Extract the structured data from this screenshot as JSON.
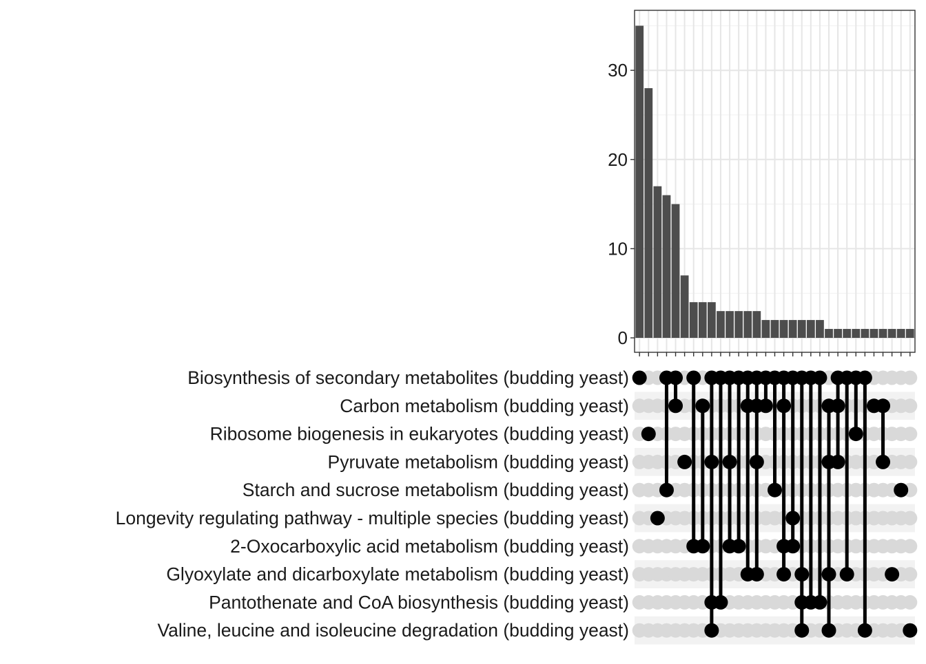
{
  "chart_data": {
    "type": "upset",
    "ylim": [
      0,
      36
    ],
    "yticks": [
      0,
      10,
      20,
      30
    ],
    "sets": [
      "Biosynthesis of secondary metabolites (budding yeast)",
      "Carbon metabolism (budding yeast)",
      "Ribosome biogenesis in eukaryotes (budding yeast)",
      "Pyruvate metabolism (budding yeast)",
      "Starch and sucrose metabolism (budding yeast)",
      "Longevity regulating pathway - multiple species (budding yeast)",
      "2-Oxocarboxylic acid metabolism (budding yeast)",
      "Glyoxylate and dicarboxylate metabolism (budding yeast)",
      "Pantothenate and CoA biosynthesis (budding yeast)",
      "Valine, leucine and isoleucine degradation (budding yeast)"
    ],
    "intersections": [
      {
        "size": 35,
        "sets": [
          0
        ]
      },
      {
        "size": 28,
        "sets": [
          2
        ]
      },
      {
        "size": 17,
        "sets": [
          5
        ]
      },
      {
        "size": 16,
        "sets": [
          0,
          4
        ]
      },
      {
        "size": 15,
        "sets": [
          0,
          1
        ]
      },
      {
        "size": 7,
        "sets": [
          3
        ]
      },
      {
        "size": 4,
        "sets": [
          0,
          6
        ]
      },
      {
        "size": 4,
        "sets": [
          1,
          6
        ]
      },
      {
        "size": 4,
        "sets": [
          0,
          3,
          8,
          9
        ]
      },
      {
        "size": 3,
        "sets": [
          0,
          8
        ]
      },
      {
        "size": 3,
        "sets": [
          0,
          3,
          6
        ]
      },
      {
        "size": 3,
        "sets": [
          0,
          6
        ]
      },
      {
        "size": 3,
        "sets": [
          0,
          1,
          7
        ]
      },
      {
        "size": 3,
        "sets": [
          0,
          1,
          3,
          7
        ]
      },
      {
        "size": 2,
        "sets": [
          0,
          1
        ]
      },
      {
        "size": 2,
        "sets": [
          0,
          4
        ]
      },
      {
        "size": 2,
        "sets": [
          0,
          1,
          6,
          7
        ]
      },
      {
        "size": 2,
        "sets": [
          0,
          5,
          6
        ]
      },
      {
        "size": 2,
        "sets": [
          0,
          7,
          8,
          9
        ]
      },
      {
        "size": 2,
        "sets": [
          0,
          8
        ]
      },
      {
        "size": 2,
        "sets": [
          0,
          8
        ]
      },
      {
        "size": 1,
        "sets": [
          1,
          3,
          7,
          9
        ]
      },
      {
        "size": 1,
        "sets": [
          0,
          1,
          3
        ]
      },
      {
        "size": 1,
        "sets": [
          0,
          7
        ]
      },
      {
        "size": 1,
        "sets": [
          0,
          2
        ]
      },
      {
        "size": 1,
        "sets": [
          0,
          9
        ]
      },
      {
        "size": 1,
        "sets": [
          1
        ]
      },
      {
        "size": 1,
        "sets": [
          1,
          3
        ]
      },
      {
        "size": 1,
        "sets": [
          7
        ]
      },
      {
        "size": 1,
        "sets": [
          4
        ]
      },
      {
        "size": 1,
        "sets": [
          9
        ]
      }
    ]
  }
}
